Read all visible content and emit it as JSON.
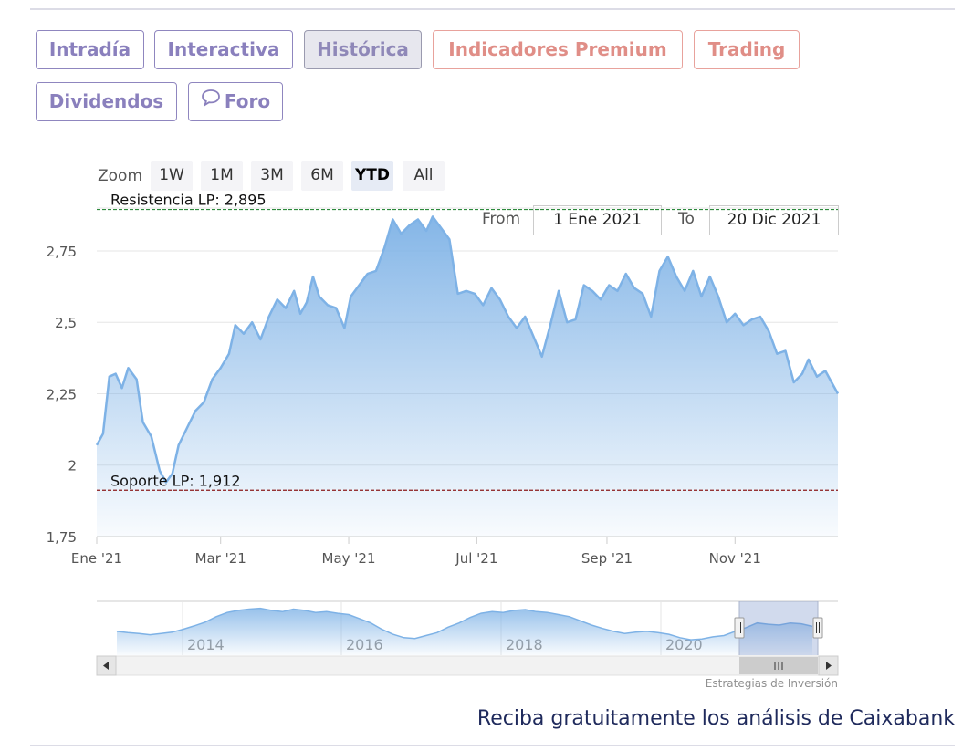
{
  "tabs": [
    {
      "label": "Intradía"
    },
    {
      "label": "Interactiva"
    },
    {
      "label": "Histórica"
    },
    {
      "label": "Indicadores Premium"
    },
    {
      "label": "Trading"
    },
    {
      "label": "Dividendos"
    },
    {
      "label": "Foro"
    }
  ],
  "zoom": {
    "label": "Zoom",
    "buttons": [
      "1W",
      "1M",
      "3M",
      "6M",
      "YTD",
      "All"
    ],
    "selected": "YTD"
  },
  "range": {
    "from_label": "From",
    "from_value": "1 Ene 2021",
    "to_label": "To",
    "to_value": "20 Dic 2021"
  },
  "chart_data": {
    "type": "area",
    "x_range": [
      "2021-01-01",
      "2021-12-20"
    ],
    "ylim": [
      1.75,
      2.9
    ],
    "grid": true,
    "y_ticks": [
      {
        "value": 1.75,
        "label": "1,75"
      },
      {
        "value": 2.0,
        "label": "2"
      },
      {
        "value": 2.25,
        "label": "2,25"
      },
      {
        "value": 2.5,
        "label": "2,5"
      },
      {
        "value": 2.75,
        "label": "2,75"
      }
    ],
    "x_ticks": [
      {
        "date": "2021-01-01",
        "label": "Ene '21"
      },
      {
        "date": "2021-03-01",
        "label": "Mar '21"
      },
      {
        "date": "2021-05-01",
        "label": "May '21"
      },
      {
        "date": "2021-07-01",
        "label": "Jul '21"
      },
      {
        "date": "2021-09-01",
        "label": "Sep '21"
      },
      {
        "date": "2021-11-01",
        "label": "Nov '21"
      }
    ],
    "lines": [
      {
        "label": "Resistencia LP: 2,895",
        "value": 2.895,
        "color": "#2e8b3d"
      },
      {
        "label": "Soporte LP: 1,912",
        "value": 1.912,
        "color": "#8b1a1a"
      }
    ],
    "series_color": "#7eb2e6",
    "points": [
      [
        "2021-01-01",
        2.07
      ],
      [
        "2021-01-04",
        2.11
      ],
      [
        "2021-01-07",
        2.31
      ],
      [
        "2021-01-10",
        2.32
      ],
      [
        "2021-01-13",
        2.27
      ],
      [
        "2021-01-16",
        2.34
      ],
      [
        "2021-01-20",
        2.3
      ],
      [
        "2021-01-23",
        2.15
      ],
      [
        "2021-01-27",
        2.1
      ],
      [
        "2021-01-31",
        1.98
      ],
      [
        "2021-02-03",
        1.94
      ],
      [
        "2021-02-06",
        1.97
      ],
      [
        "2021-02-09",
        2.07
      ],
      [
        "2021-02-13",
        2.13
      ],
      [
        "2021-02-17",
        2.19
      ],
      [
        "2021-02-21",
        2.22
      ],
      [
        "2021-02-25",
        2.3
      ],
      [
        "2021-03-01",
        2.34
      ],
      [
        "2021-03-05",
        2.39
      ],
      [
        "2021-03-08",
        2.49
      ],
      [
        "2021-03-12",
        2.46
      ],
      [
        "2021-03-16",
        2.5
      ],
      [
        "2021-03-20",
        2.44
      ],
      [
        "2021-03-24",
        2.52
      ],
      [
        "2021-03-28",
        2.58
      ],
      [
        "2021-04-01",
        2.55
      ],
      [
        "2021-04-05",
        2.61
      ],
      [
        "2021-04-08",
        2.53
      ],
      [
        "2021-04-11",
        2.57
      ],
      [
        "2021-04-14",
        2.66
      ],
      [
        "2021-04-17",
        2.59
      ],
      [
        "2021-04-21",
        2.56
      ],
      [
        "2021-04-25",
        2.55
      ],
      [
        "2021-04-29",
        2.48
      ],
      [
        "2021-05-02",
        2.59
      ],
      [
        "2021-05-06",
        2.63
      ],
      [
        "2021-05-10",
        2.67
      ],
      [
        "2021-05-14",
        2.68
      ],
      [
        "2021-05-18",
        2.76
      ],
      [
        "2021-05-22",
        2.86
      ],
      [
        "2021-05-26",
        2.81
      ],
      [
        "2021-05-30",
        2.84
      ],
      [
        "2021-06-03",
        2.86
      ],
      [
        "2021-06-07",
        2.82
      ],
      [
        "2021-06-10",
        2.87
      ],
      [
        "2021-06-14",
        2.83
      ],
      [
        "2021-06-18",
        2.79
      ],
      [
        "2021-06-22",
        2.6
      ],
      [
        "2021-06-26",
        2.61
      ],
      [
        "2021-06-30",
        2.6
      ],
      [
        "2021-07-04",
        2.56
      ],
      [
        "2021-07-08",
        2.62
      ],
      [
        "2021-07-12",
        2.58
      ],
      [
        "2021-07-16",
        2.52
      ],
      [
        "2021-07-20",
        2.48
      ],
      [
        "2021-07-24",
        2.52
      ],
      [
        "2021-07-28",
        2.45
      ],
      [
        "2021-08-01",
        2.38
      ],
      [
        "2021-08-05",
        2.49
      ],
      [
        "2021-08-09",
        2.61
      ],
      [
        "2021-08-13",
        2.5
      ],
      [
        "2021-08-17",
        2.51
      ],
      [
        "2021-08-21",
        2.63
      ],
      [
        "2021-08-25",
        2.61
      ],
      [
        "2021-08-29",
        2.58
      ],
      [
        "2021-09-02",
        2.63
      ],
      [
        "2021-09-06",
        2.61
      ],
      [
        "2021-09-10",
        2.67
      ],
      [
        "2021-09-14",
        2.62
      ],
      [
        "2021-09-18",
        2.6
      ],
      [
        "2021-09-22",
        2.52
      ],
      [
        "2021-09-26",
        2.68
      ],
      [
        "2021-09-30",
        2.73
      ],
      [
        "2021-10-04",
        2.66
      ],
      [
        "2021-10-08",
        2.61
      ],
      [
        "2021-10-12",
        2.68
      ],
      [
        "2021-10-16",
        2.59
      ],
      [
        "2021-10-20",
        2.66
      ],
      [
        "2021-10-24",
        2.59
      ],
      [
        "2021-10-28",
        2.5
      ],
      [
        "2021-11-01",
        2.53
      ],
      [
        "2021-11-05",
        2.49
      ],
      [
        "2021-11-09",
        2.51
      ],
      [
        "2021-11-13",
        2.52
      ],
      [
        "2021-11-17",
        2.47
      ],
      [
        "2021-11-21",
        2.39
      ],
      [
        "2021-11-25",
        2.4
      ],
      [
        "2021-11-29",
        2.29
      ],
      [
        "2021-12-03",
        2.32
      ],
      [
        "2021-12-06",
        2.37
      ],
      [
        "2021-12-10",
        2.31
      ],
      [
        "2021-12-14",
        2.33
      ],
      [
        "2021-12-17",
        2.29
      ],
      [
        "2021-12-20",
        2.25
      ]
    ]
  },
  "navigator": {
    "year_labels": [
      "2014",
      "2016",
      "2018",
      "2020"
    ],
    "profile": [
      0.35,
      0.32,
      0.3,
      0.27,
      0.3,
      0.33,
      0.4,
      0.48,
      0.57,
      0.7,
      0.8,
      0.85,
      0.88,
      0.9,
      0.85,
      0.82,
      0.88,
      0.85,
      0.8,
      0.82,
      0.78,
      0.75,
      0.65,
      0.55,
      0.4,
      0.28,
      0.2,
      0.18,
      0.25,
      0.32,
      0.45,
      0.55,
      0.68,
      0.78,
      0.82,
      0.8,
      0.85,
      0.87,
      0.82,
      0.8,
      0.75,
      0.7,
      0.6,
      0.5,
      0.42,
      0.35,
      0.3,
      0.33,
      0.35,
      0.32,
      0.28,
      0.2,
      0.15,
      0.17,
      0.22,
      0.25,
      0.35,
      0.44,
      0.55,
      0.52,
      0.5,
      0.55,
      0.53,
      0.47
    ]
  },
  "credit": "Estrategias de Inversión",
  "cta": "Reciba gratuitamente los análisis de Caixabank"
}
